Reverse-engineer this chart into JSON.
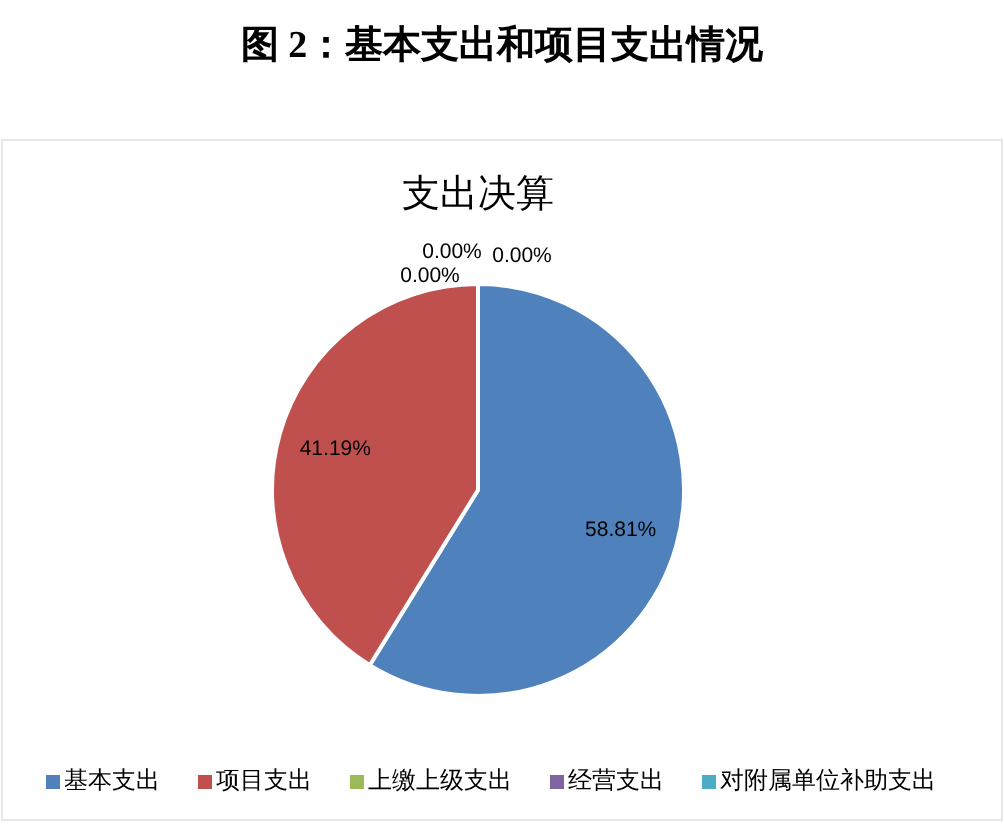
{
  "chart_data": {
    "type": "pie",
    "title": "图 2：基本支出和项目支出情况",
    "subtitle": "支出决算",
    "categories": [
      "基本支出",
      "项目支出",
      "上缴上级支出",
      "经营支出",
      "对附属单位补助支出"
    ],
    "values": [
      58.81,
      41.19,
      0,
      0,
      0
    ],
    "colors": [
      "#4f81bd",
      "#c0504d",
      "#9bbb59",
      "#8064a2",
      "#4bacc6"
    ],
    "value_labels": [
      "58.81%",
      "41.19%",
      "0.00%",
      "0.00%",
      "0.00%"
    ],
    "legend": "bottom"
  }
}
